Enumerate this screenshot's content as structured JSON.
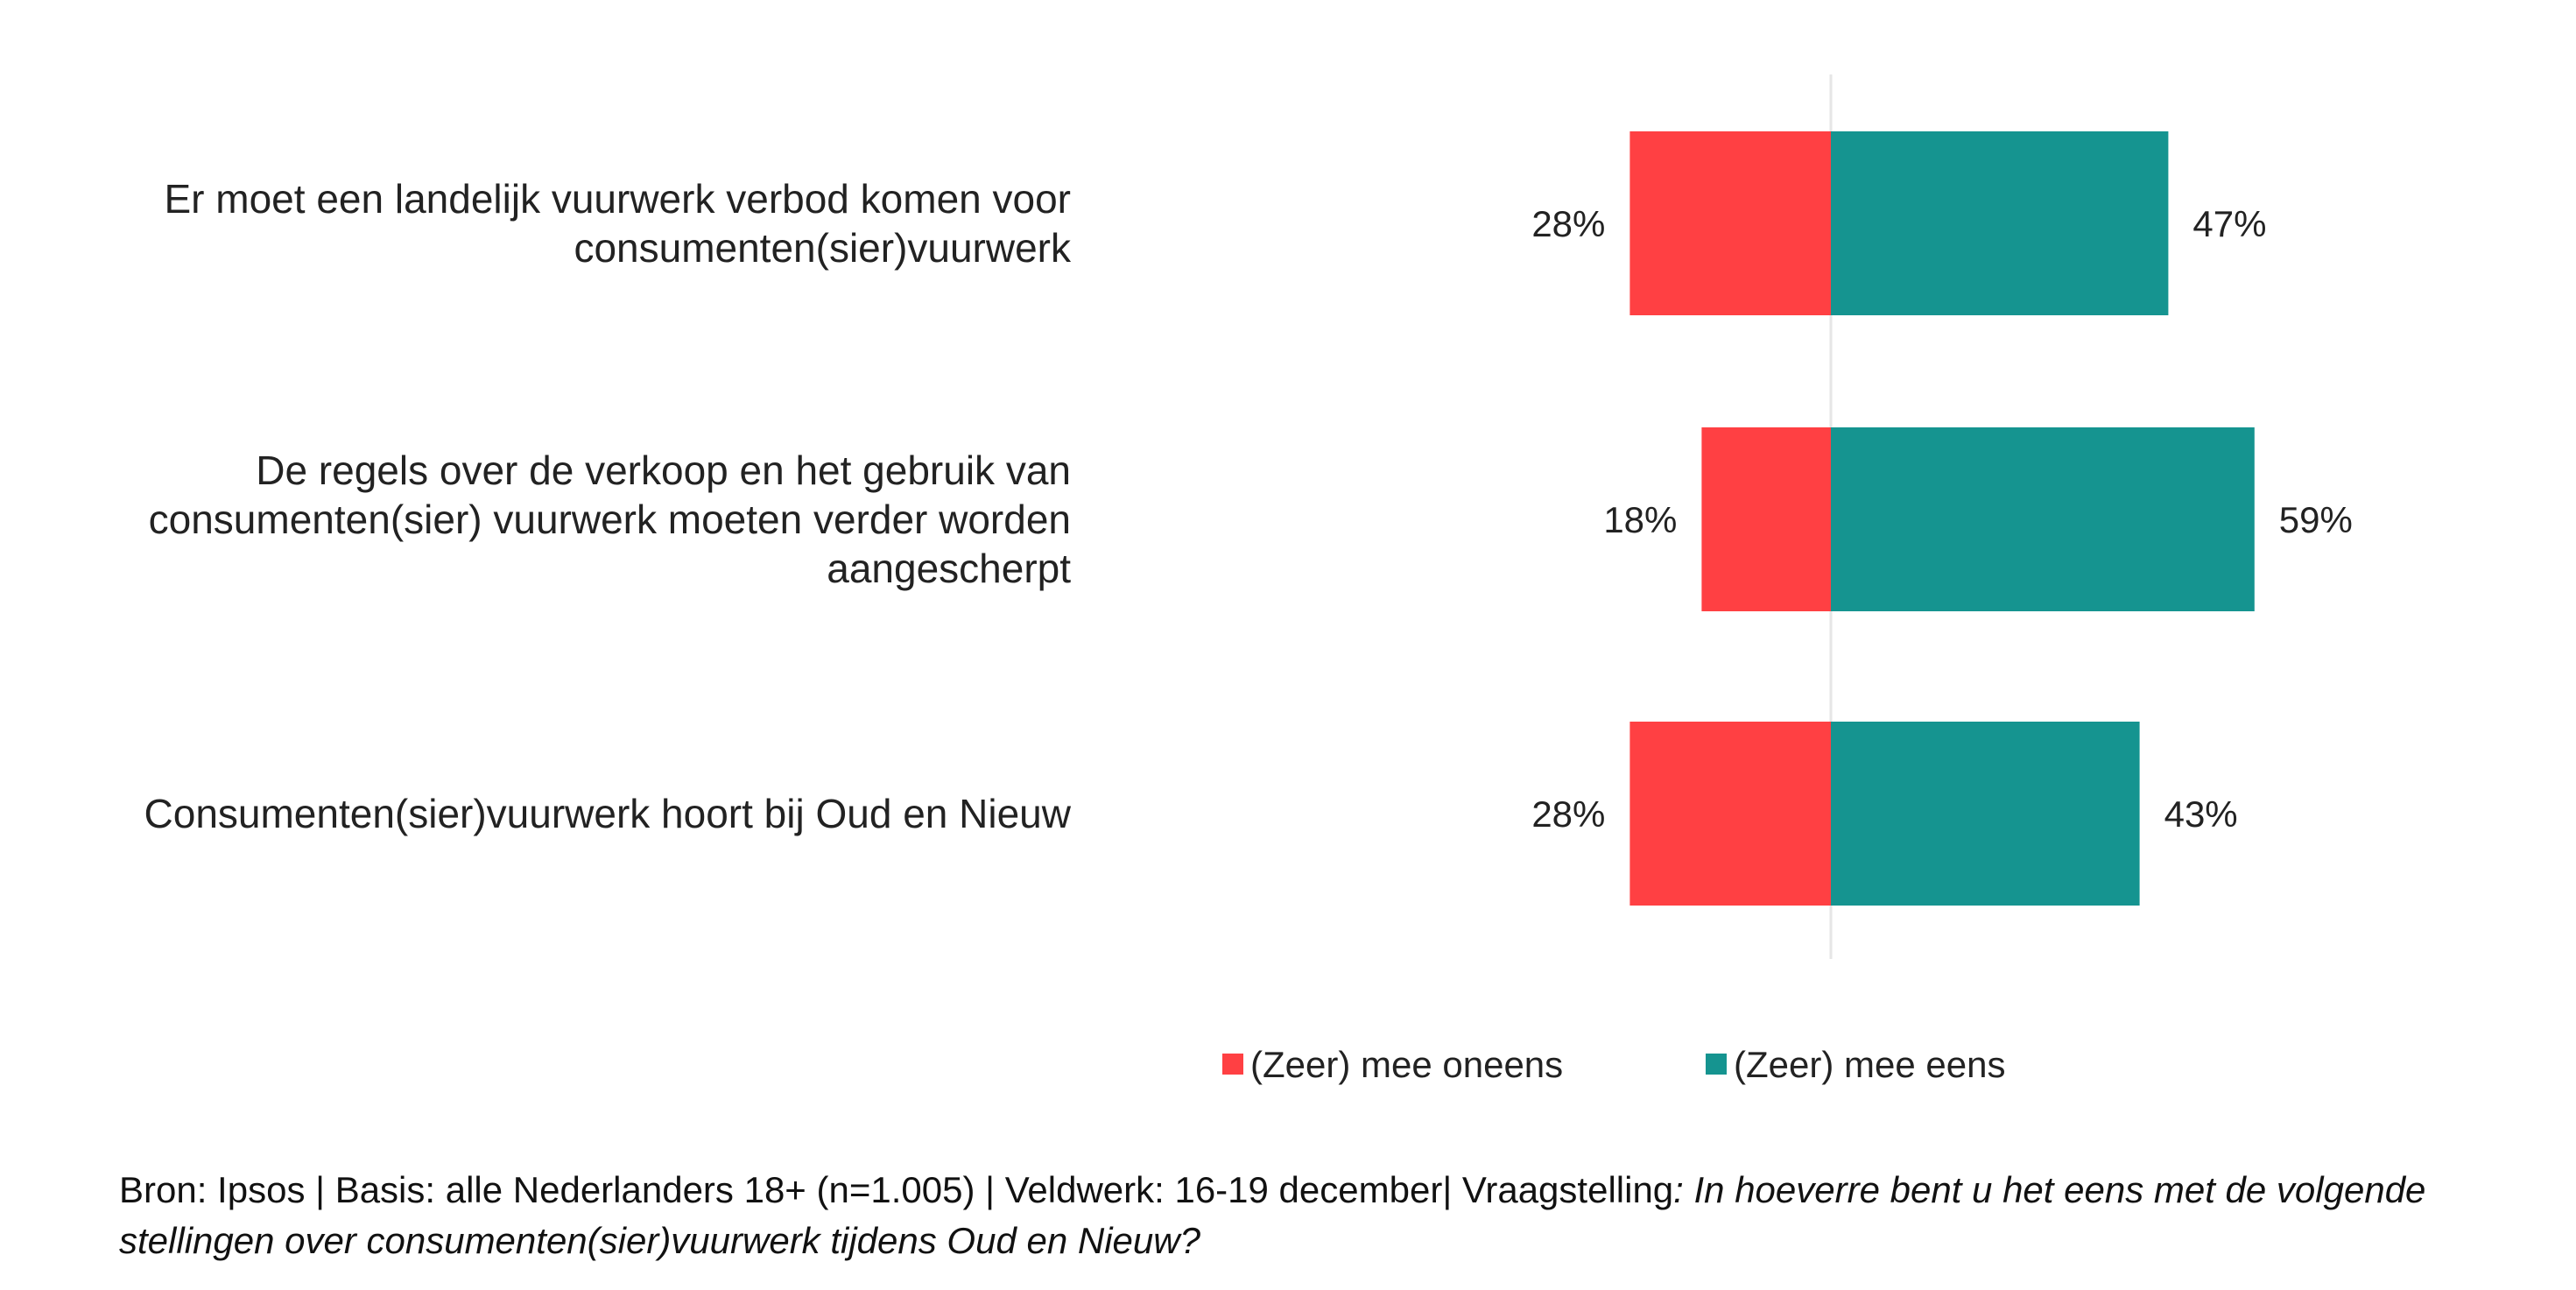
{
  "colors": {
    "disagree": "#FF4043",
    "agree": "#159490",
    "center_line": "#E6E6E6",
    "text": "#222222"
  },
  "chart_data": {
    "type": "bar",
    "orientation": "horizontal-diverging",
    "categories": [
      "Er moet een landelijk vuurwerk verbod komen voor consumenten(sier)vuurwerk",
      "De regels over de verkoop en het gebruik van consumenten(sier) vuurwerk moeten verder worden aangescherpt",
      "Consumenten(sier)vuurwerk hoort bij Oud en Nieuw"
    ],
    "category_lines": [
      [
        "Er moet een landelijk vuurwerk verbod komen voor",
        "consumenten(sier)vuurwerk"
      ],
      [
        "De regels over de verkoop en het gebruik van",
        "consumenten(sier) vuurwerk moeten verder worden",
        "aangescherpt"
      ],
      [
        "Consumenten(sier)vuurwerk hoort bij Oud en Nieuw"
      ]
    ],
    "series": [
      {
        "name": "(Zeer) mee oneens",
        "values": [
          28,
          18,
          28
        ],
        "labels": [
          "28%",
          "18%",
          "28%"
        ],
        "color": "#FF4043"
      },
      {
        "name": "(Zeer) mee eens",
        "values": [
          47,
          59,
          43
        ],
        "labels": [
          "47%",
          "59%",
          "43%"
        ],
        "color": "#159490"
      }
    ],
    "unit": "%",
    "legend_position": "bottom",
    "grid": false
  },
  "footnote": {
    "prefix": "Bron: Ipsos | Basis: alle Nederlanders 18+ (n=1.005) | Veldwerk: 16-19 december| Vraagstelling",
    "question": ":  In hoeverre bent u het eens met de volgende stellingen over consumenten(sier)vuurwerk tijdens Oud en Nieuw?"
  }
}
